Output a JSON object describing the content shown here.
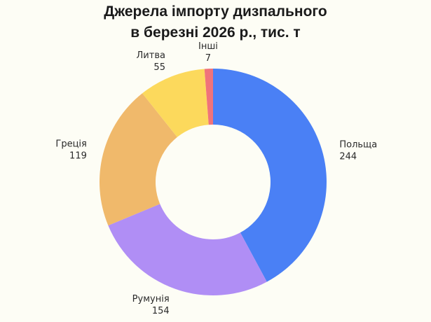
{
  "chart_data": {
    "type": "pie",
    "title_lines": [
      "Джерела імпорту дизпального",
      "в березні 2026 р., тис. т"
    ],
    "donut": true,
    "slices": [
      {
        "label": "Польща",
        "value": 244,
        "color": "#4a80f5"
      },
      {
        "label": "Румунія",
        "value": 154,
        "color": "#b08ef5"
      },
      {
        "label": "Греція",
        "value": 119,
        "color": "#f0b96b"
      },
      {
        "label": "Литва",
        "value": 55,
        "color": "#fcd95c"
      },
      {
        "label": "Інші",
        "value": 7,
        "color": "#f0737a"
      }
    ]
  }
}
